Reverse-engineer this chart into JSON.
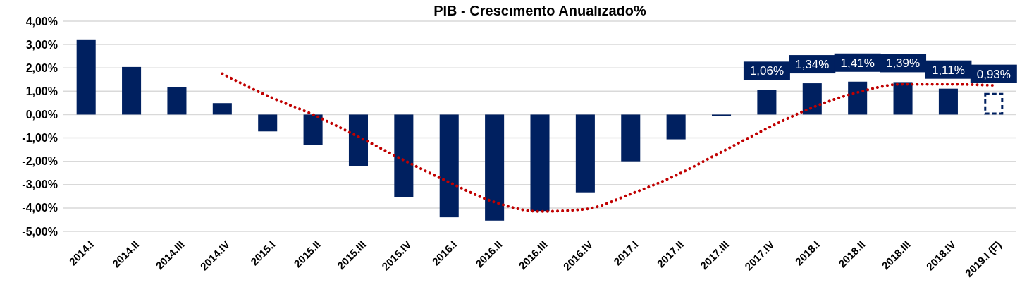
{
  "chart_data": {
    "type": "bar",
    "title": "PIB - Crescimento Anualizado%",
    "categories": [
      "2014.I",
      "2014.II",
      "2014.III",
      "2014.IV",
      "2015.I",
      "2015.II",
      "2015.III",
      "2015.IV",
      "2016.I",
      "2016.II",
      "2016.III",
      "2016.IV",
      "2017.I",
      "2017.II",
      "2017.III",
      "2017.IV",
      "2018.I",
      "2018.II",
      "2018.III",
      "2018.IV",
      "2019.I (F)"
    ],
    "series": [
      {
        "color": "#002060",
        "values": [
          3.19,
          2.04,
          1.19,
          0.49,
          -0.72,
          -1.29,
          -2.21,
          -3.55,
          -4.4,
          -4.54,
          -4.13,
          -3.33,
          -2.0,
          -1.06,
          -0.05,
          1.06,
          1.34,
          1.41,
          1.39,
          1.11,
          null
        ],
        "value_labels": [
          null,
          null,
          null,
          null,
          null,
          null,
          null,
          null,
          null,
          null,
          null,
          null,
          null,
          null,
          null,
          "1,06%",
          "1,34%",
          "1,41%",
          "1,39%",
          "1,11%",
          null
        ]
      },
      {
        "color": "#002060",
        "line_style": "dashed",
        "values": [
          null,
          null,
          null,
          null,
          null,
          null,
          null,
          null,
          null,
          null,
          null,
          null,
          null,
          null,
          null,
          null,
          null,
          null,
          null,
          null,
          0.93
        ],
        "value_labels": [
          null,
          null,
          null,
          null,
          null,
          null,
          null,
          null,
          null,
          null,
          null,
          null,
          null,
          null,
          null,
          null,
          null,
          null,
          null,
          null,
          "0,93%"
        ]
      },
      {
        "type": "line",
        "color": "#c00000",
        "line_style": "dotted",
        "marker": "none",
        "values": [
          null,
          null,
          null,
          1.75,
          0.8,
          0.0,
          -0.95,
          -1.95,
          -2.9,
          -3.75,
          -4.15,
          -4.05,
          -3.4,
          -2.6,
          -1.6,
          -0.6,
          0.3,
          0.95,
          1.3,
          1.3,
          1.25
        ]
      }
    ],
    "ylim": [
      -5,
      4
    ],
    "yticks": [
      {
        "value": -5,
        "label": "-5,00%"
      },
      {
        "value": -4,
        "label": "-4,00%"
      },
      {
        "value": -3,
        "label": "-3,00%"
      },
      {
        "value": -2,
        "label": "-2,00%"
      },
      {
        "value": -1,
        "label": "-1,00%"
      },
      {
        "value": 0,
        "label": "0,00%"
      },
      {
        "value": 1,
        "label": "1,00%"
      },
      {
        "value": 2,
        "label": "2,00%"
      },
      {
        "value": 3,
        "label": "3,00%"
      },
      {
        "value": 4,
        "label": "4,00%"
      }
    ],
    "grid": "y"
  }
}
